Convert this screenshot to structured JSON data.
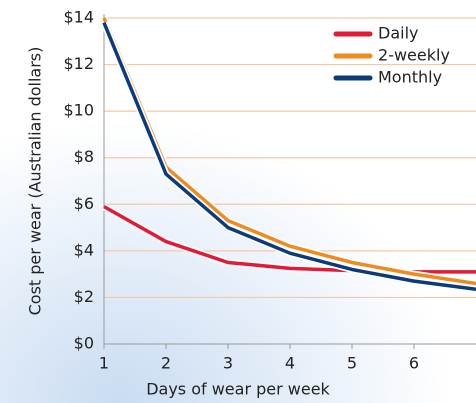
{
  "chart_data": {
    "type": "line",
    "xlabel": "Days of wear per week",
    "ylabel": "Cost per wear (Australian dollars)",
    "x": [
      1,
      2,
      3,
      4,
      5,
      6,
      7
    ],
    "series": [
      {
        "name": "Daily",
        "color": "#e31937",
        "values": [
          5.9,
          4.4,
          3.5,
          3.25,
          3.15,
          3.1,
          3.1
        ]
      },
      {
        "name": "2-weekly",
        "color": "#f08a1c",
        "values": [
          14,
          7.6,
          5.3,
          4.2,
          3.5,
          3.0,
          2.6
        ]
      },
      {
        "name": "Monthly",
        "color": "#0b3b7a",
        "values": [
          13.8,
          7.3,
          5.0,
          3.9,
          3.2,
          2.7,
          2.35
        ]
      }
    ],
    "xlim": [
      1,
      7
    ],
    "xticks": [
      1,
      2,
      3,
      4,
      5,
      6
    ],
    "ylim": [
      0,
      14
    ],
    "yticks": [
      {
        "value": 0,
        "label": "$0"
      },
      {
        "value": 2,
        "label": "$2"
      },
      {
        "value": 4,
        "label": "$4"
      },
      {
        "value": 6,
        "label": "$6"
      },
      {
        "value": 8,
        "label": "$8"
      },
      {
        "value": 10,
        "label": "$10"
      },
      {
        "value": 12,
        "label": "$12"
      },
      {
        "value": 14,
        "label": "$14"
      }
    ],
    "grid": true,
    "legend": "upper right"
  }
}
